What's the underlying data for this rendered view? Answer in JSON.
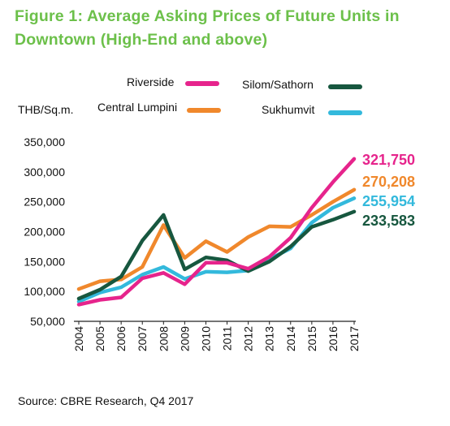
{
  "chart_data": {
    "type": "line",
    "title": "Figure 1: Average Asking Prices of Future Units in Downtown (High-End and above)",
    "title_lines": [
      "Figure 1: Average Asking Prices of Future Units in",
      "Downtown (High-End and above)"
    ],
    "ylabel": "THB/Sq.m.",
    "xlabel": "",
    "ylim": [
      50000,
      350000
    ],
    "yticks": [
      50000,
      100000,
      150000,
      200000,
      250000,
      300000,
      350000
    ],
    "ytick_labels": [
      "50,000",
      "100,000",
      "150,000",
      "200,000",
      "250,000",
      "300,000",
      "350,000"
    ],
    "x": [
      "2004",
      "2005",
      "2006",
      "2007",
      "2008",
      "2009",
      "2010",
      "2011",
      "2012",
      "2013",
      "2014",
      "2015",
      "2016",
      "2017"
    ],
    "grid": false,
    "legend_position": "top",
    "series": [
      {
        "name": "Riverside",
        "color": "#e6248c",
        "end_label": "321,750",
        "values": [
          78000,
          86000,
          90000,
          122000,
          131000,
          112000,
          148000,
          148000,
          138000,
          158000,
          190000,
          240000,
          283000,
          321750
        ]
      },
      {
        "name": "Silom/Sathorn",
        "color": "#17573f",
        "end_label": "233,583",
        "values": [
          88000,
          103000,
          125000,
          185000,
          228000,
          137000,
          157000,
          152000,
          134000,
          150000,
          175000,
          208000,
          220000,
          233583
        ]
      },
      {
        "name": "Central Lumpini",
        "color": "#f0882c",
        "end_label": "270,208",
        "values": [
          104000,
          117000,
          120000,
          141000,
          211000,
          156000,
          184000,
          166000,
          191000,
          209000,
          208000,
          228000,
          250000,
          270208
        ]
      },
      {
        "name": "Sukhumvit",
        "color": "#33b9dc",
        "end_label": "255,954",
        "values": [
          83000,
          98000,
          107000,
          128000,
          141000,
          121000,
          133000,
          132000,
          135000,
          154000,
          172000,
          215000,
          240000,
          255954
        ]
      }
    ]
  },
  "source": "Source: CBRE Research, Q4 2017"
}
